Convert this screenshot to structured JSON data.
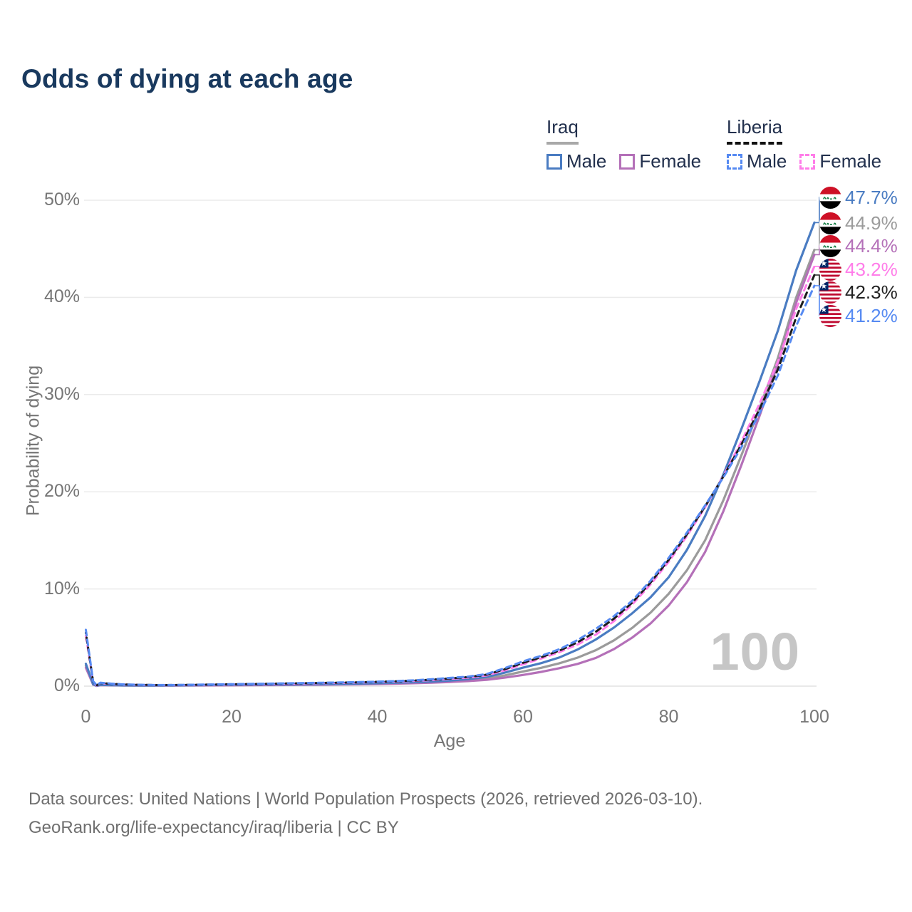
{
  "title": "Odds of dying at each age",
  "legend": {
    "groups": [
      {
        "country": "Iraq",
        "line_style": "solid",
        "line_color": "#a8a8a8",
        "items": [
          {
            "label": "Male",
            "color": "#4a7cc2",
            "style": "solid"
          },
          {
            "label": "Female",
            "color": "#b470b8",
            "style": "solid"
          }
        ]
      },
      {
        "country": "Liberia",
        "line_style": "dashed",
        "line_color": "#111111",
        "items": [
          {
            "label": "Male",
            "color": "#568af2",
            "style": "dashed"
          },
          {
            "label": "Female",
            "color": "#ff7de9",
            "style": "dashed"
          }
        ]
      }
    ]
  },
  "chart_data": {
    "type": "line",
    "title": "Odds of dying at each age",
    "xlabel": "Age",
    "ylabel": "Probability of dying",
    "xlim": [
      0,
      100
    ],
    "ylim": [
      0,
      50
    ],
    "xticks": [
      0,
      20,
      40,
      60,
      80,
      100
    ],
    "ytick_labels": [
      "0%",
      "10%",
      "20%",
      "30%",
      "40%",
      "50%"
    ],
    "grid": "horizontal",
    "legend_position": "top-right",
    "x_ages": [
      0,
      1,
      2,
      5,
      10,
      15,
      20,
      25,
      30,
      35,
      40,
      45,
      50,
      55,
      60,
      65,
      70,
      75,
      80,
      85,
      90,
      95,
      100
    ],
    "series": [
      {
        "name": "Iraq Total",
        "country": "Iraq",
        "sex": "total",
        "color": "#9b9b9b",
        "dashed": false,
        "values": [
          2.1,
          0.18,
          0.12,
          0.07,
          0.06,
          0.08,
          0.11,
          0.13,
          0.16,
          0.2,
          0.26,
          0.35,
          0.5,
          0.78,
          1.5,
          2.35,
          3.7,
          6.0,
          9.5,
          15.0,
          23.8,
          33.8,
          44.9
        ]
      },
      {
        "name": "Iraq Female",
        "country": "Iraq",
        "sex": "female",
        "color": "#b470b8",
        "dashed": false,
        "values": [
          1.9,
          0.16,
          0.11,
          0.07,
          0.06,
          0.07,
          0.09,
          0.11,
          0.13,
          0.17,
          0.22,
          0.3,
          0.43,
          0.65,
          1.15,
          1.85,
          2.9,
          5.0,
          8.3,
          13.8,
          22.8,
          33.2,
          44.4
        ]
      },
      {
        "name": "Iraq Male",
        "country": "Iraq",
        "sex": "male",
        "color": "#4a7cc2",
        "dashed": false,
        "values": [
          2.3,
          0.2,
          0.13,
          0.08,
          0.07,
          0.1,
          0.14,
          0.16,
          0.19,
          0.23,
          0.3,
          0.4,
          0.58,
          0.95,
          1.9,
          2.95,
          4.8,
          7.5,
          11.2,
          17.5,
          26.5,
          36.6,
          47.7
        ]
      },
      {
        "name": "Liberia Female",
        "country": "Liberia",
        "sex": "female",
        "color": "#ff7de9",
        "dashed": true,
        "values": [
          5.2,
          0.42,
          0.3,
          0.16,
          0.1,
          0.12,
          0.17,
          0.22,
          0.28,
          0.34,
          0.42,
          0.53,
          0.75,
          1.1,
          2.25,
          3.5,
          5.3,
          8.4,
          12.8,
          18.4,
          25.2,
          33.4,
          43.2
        ]
      },
      {
        "name": "Liberia Total",
        "country": "Liberia",
        "sex": "total",
        "color": "#1c1c1c",
        "dashed": true,
        "values": [
          5.5,
          0.46,
          0.32,
          0.17,
          0.11,
          0.14,
          0.19,
          0.24,
          0.3,
          0.36,
          0.44,
          0.57,
          0.8,
          1.18,
          2.4,
          3.65,
          5.6,
          8.6,
          13.0,
          18.5,
          24.9,
          32.6,
          42.3
        ]
      },
      {
        "name": "Liberia Male",
        "country": "Liberia",
        "sex": "male",
        "color": "#568af2",
        "dashed": true,
        "values": [
          5.8,
          0.5,
          0.35,
          0.18,
          0.12,
          0.15,
          0.2,
          0.26,
          0.32,
          0.38,
          0.46,
          0.6,
          0.85,
          1.25,
          2.55,
          3.8,
          5.9,
          8.8,
          13.2,
          18.6,
          24.6,
          32.0,
          41.2
        ]
      }
    ]
  },
  "end_labels": [
    {
      "flag": "iraq",
      "series": "Iraq Male",
      "value": "47.7%",
      "color": "#4a7cc2"
    },
    {
      "flag": "iraq",
      "series": "Iraq Total",
      "value": "44.9%",
      "color": "#9b9b9b"
    },
    {
      "flag": "iraq",
      "series": "Iraq Female",
      "value": "44.4%",
      "color": "#b470b8"
    },
    {
      "flag": "liberia",
      "series": "Liberia Female",
      "value": "43.2%",
      "color": "#ff7de9"
    },
    {
      "flag": "liberia",
      "series": "Liberia Total",
      "value": "42.3%",
      "color": "#222222"
    },
    {
      "flag": "liberia",
      "series": "Liberia Male",
      "value": "41.2%",
      "color": "#568af2"
    }
  ],
  "watermark": "100",
  "footer": {
    "line1": "Data sources: United Nations | World Population Prospects (2026, retrieved 2026-03-10).",
    "line2": "GeoRank.org/life-expectancy/iraq/liberia | CC BY"
  }
}
